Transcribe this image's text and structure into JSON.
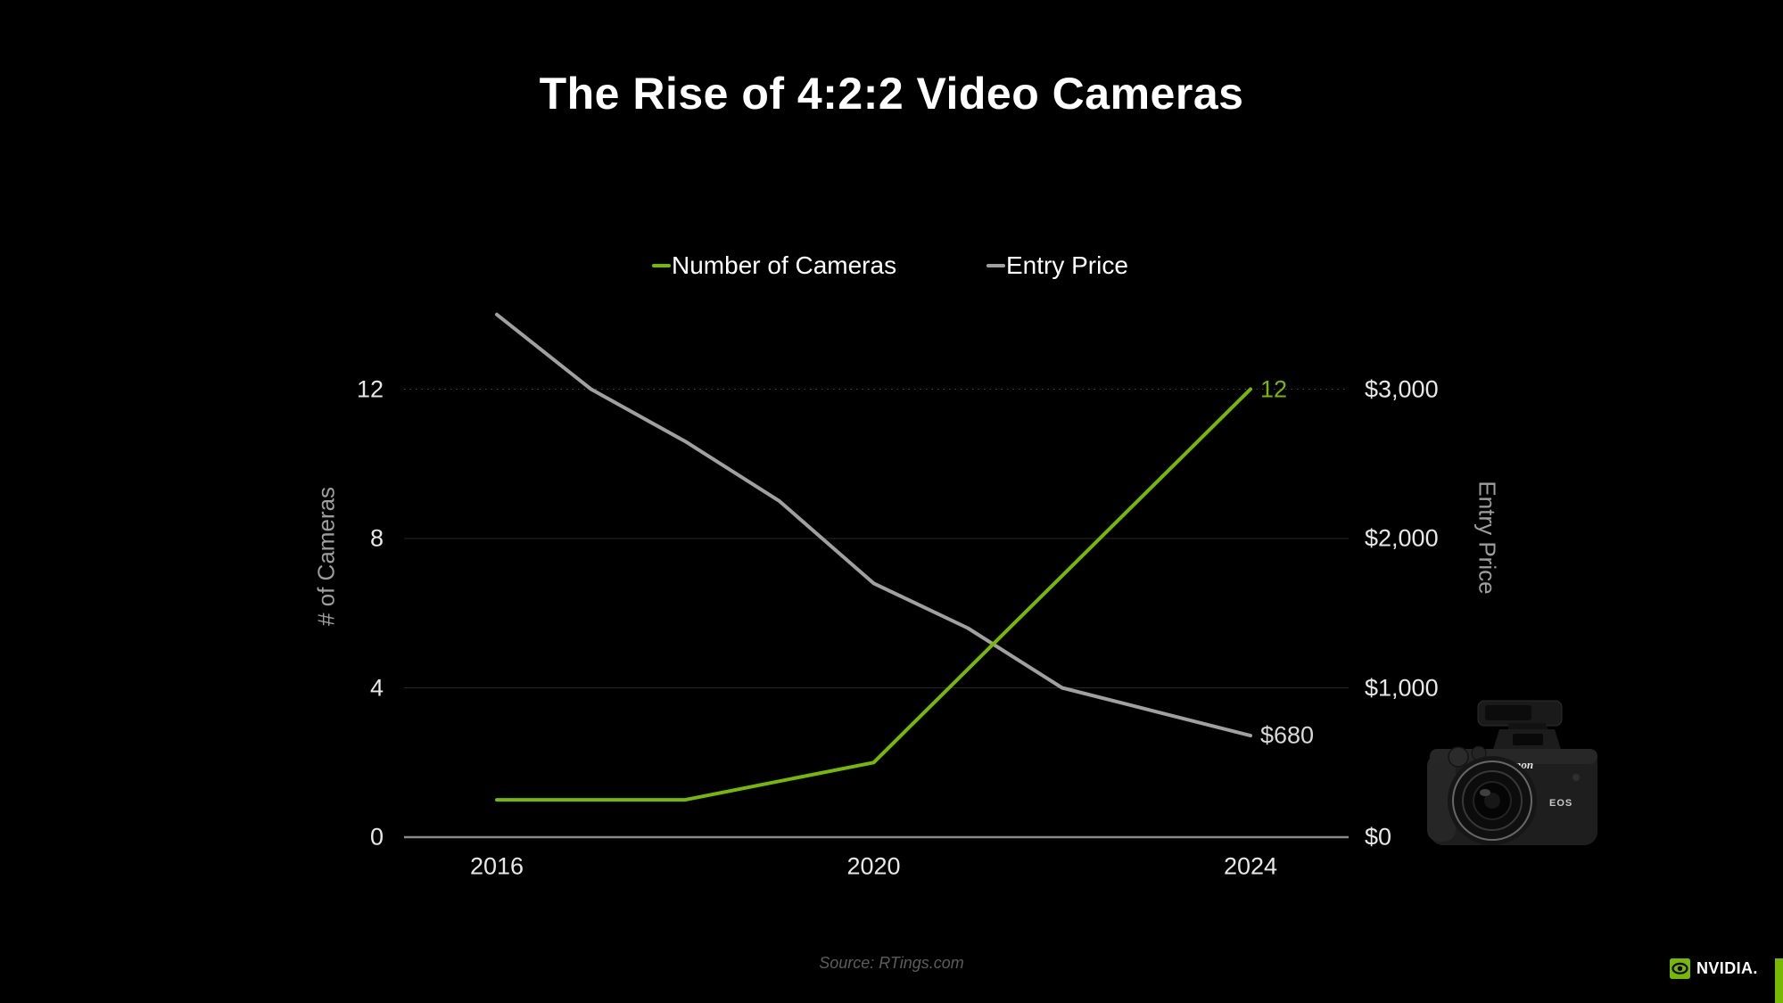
{
  "slide": {
    "title": "The Rise of 4:2:2 Video Cameras",
    "source": "Source: RTings.com",
    "brand": {
      "wordmark": "NVIDIA.",
      "green": "#76b900"
    }
  },
  "camera_graphic": {
    "brand_text": "Canon",
    "model_text": "EOS"
  },
  "chart_data": {
    "type": "line",
    "title": "The Rise of 4:2:2 Video Cameras",
    "legend_position": "top",
    "grid": "horizontal",
    "legend": [
      {
        "label": "Number of Cameras",
        "color": "#76b900"
      },
      {
        "label": "Entry Price",
        "color": "#a0a0a0"
      }
    ],
    "x_axis": {
      "ticks": [
        2016,
        2020,
        2024
      ],
      "range": [
        2016,
        2024
      ]
    },
    "y_left": {
      "label": "# of Cameras",
      "ticks": [
        0,
        4,
        8,
        12
      ],
      "range": [
        0,
        12
      ]
    },
    "y_right": {
      "label": "Entry Price",
      "tick_labels": [
        "$0",
        "$1,000",
        "$2,000",
        "$3,000"
      ],
      "tick_values": [
        0,
        1000,
        2000,
        3000
      ],
      "range": [
        0,
        3000
      ]
    },
    "series": [
      {
        "name": "Entry Price",
        "axis": "right",
        "color": "#a0a0a0",
        "x": [
          2016,
          2017,
          2018,
          2019,
          2020,
          2021,
          2022,
          2023,
          2024
        ],
        "values": [
          3500,
          3000,
          2650,
          2250,
          1700,
          1400,
          1000,
          840,
          680
        ],
        "end_label": "$680",
        "end_label_color": "#d9d9d9"
      },
      {
        "name": "Number of Cameras",
        "axis": "left",
        "color": "#76b900",
        "x": [
          2016,
          2017,
          2018,
          2020,
          2024
        ],
        "values": [
          1,
          1,
          1,
          2,
          12
        ],
        "end_label": "12",
        "end_label_color": "#76b900"
      }
    ]
  }
}
